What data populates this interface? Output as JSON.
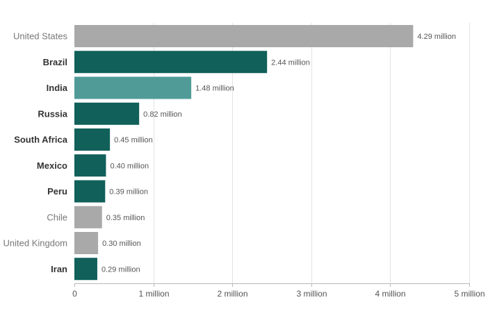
{
  "chart_data": {
    "type": "bar",
    "orientation": "horizontal",
    "title": "",
    "xlabel": "",
    "ylabel": "",
    "xlim": [
      0,
      5
    ],
    "grid": true,
    "x_ticks": [
      {
        "value": 0,
        "label": "0"
      },
      {
        "value": 1,
        "label": "1 million"
      },
      {
        "value": 2,
        "label": "2 million"
      },
      {
        "value": 3,
        "label": "3 million"
      },
      {
        "value": 4,
        "label": "4 million"
      },
      {
        "value": 5,
        "label": "5 million"
      }
    ],
    "categories": [
      "United States",
      "Brazil",
      "India",
      "Russia",
      "South Africa",
      "Mexico",
      "Peru",
      "Chile",
      "United Kingdom",
      "Iran"
    ],
    "values": [
      4.29,
      2.44,
      1.48,
      0.82,
      0.45,
      0.4,
      0.39,
      0.35,
      0.3,
      0.29
    ],
    "value_labels": [
      "4.29 million",
      "2.44 million",
      "1.48 million",
      "0.82 million",
      "0.45 million",
      "0.40 million",
      "0.39 million",
      "0.35 million",
      "0.30 million",
      "0.29 million"
    ],
    "bar_colors": [
      "#a9a9a9",
      "#11605a",
      "#509b98",
      "#11605a",
      "#11605a",
      "#11605a",
      "#11605a",
      "#a9a9a9",
      "#a9a9a9",
      "#11605a"
    ],
    "label_bold": [
      false,
      true,
      true,
      true,
      true,
      true,
      true,
      false,
      false,
      true
    ]
  }
}
